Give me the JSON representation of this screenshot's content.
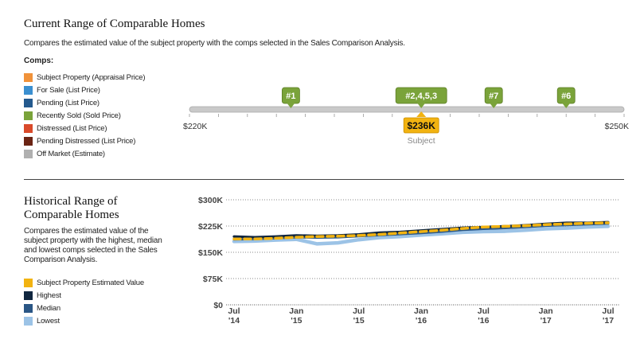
{
  "range_section": {
    "title": "Current Range of Comparable Homes",
    "description": "Compares the estimated value of the subject property with the comps selected in the Sales Comparison Analysis.",
    "comps_label": "Comps:",
    "legend": [
      {
        "label": "Subject Property (Appraisal Price)",
        "color": "#f0923a"
      },
      {
        "label": "For Sale (List Price)",
        "color": "#3a8fd0"
      },
      {
        "label": "Pending (List Price)",
        "color": "#245a8e"
      },
      {
        "label": "Recently Sold (Sold Price)",
        "color": "#7aa33a"
      },
      {
        "label": "Distressed (List Price)",
        "color": "#d94a2a"
      },
      {
        "label": "Pending Distressed (List Price)",
        "color": "#6b2414"
      },
      {
        "label": "Off Market (Estimate)",
        "color": "#b0b0b0"
      }
    ]
  },
  "history_section": {
    "title_line1": "Historical Range of",
    "title_line2": "Comparable Homes",
    "desc_lines": [
      "Compares the estimated value of the",
      "subject property with the highest, median",
      "and lowest comps selected in the Sales",
      "Comparison Analysis."
    ],
    "legend": [
      {
        "label": "Subject Property Estimated Value",
        "color": "#f2b311"
      },
      {
        "label": "Highest",
        "color": "#10263f"
      },
      {
        "label": "Median",
        "color": "#2a5685"
      },
      {
        "label": "Lowest",
        "color": "#9cc3e6"
      }
    ]
  },
  "chart_data": [
    {
      "type": "range",
      "xlim": [
        220,
        250
      ],
      "xunit": "$K",
      "end_labels": [
        "$220K",
        "$250K"
      ],
      "minor_tick_step": 2,
      "subject": {
        "value": 236,
        "label": "$236K",
        "caption": "Subject",
        "color": "#f2b311"
      },
      "markers": [
        {
          "label": "#1",
          "value": 227,
          "color": "#7aa33a"
        },
        {
          "label": "#2,4,5,3",
          "value": 236,
          "color": "#7aa33a"
        },
        {
          "label": "#7",
          "value": 241,
          "color": "#7aa33a"
        },
        {
          "label": "#6",
          "value": 246,
          "color": "#7aa33a"
        }
      ]
    },
    {
      "type": "line",
      "ylim": [
        0,
        300
      ],
      "yticks": [
        0,
        75,
        150,
        225,
        300
      ],
      "ytick_labels": [
        "$0",
        "$75K",
        "$150K",
        "$225K",
        "$300K"
      ],
      "xlim": [
        "2014-07",
        "2017-07"
      ],
      "xticks": [
        "2014-07",
        "2015-01",
        "2015-07",
        "2016-01",
        "2016-07",
        "2017-01",
        "2017-07"
      ],
      "xtick_labels": [
        [
          "Jul",
          "'14"
        ],
        [
          "Jan",
          "'15"
        ],
        [
          "Jul",
          "'15"
        ],
        [
          "Jan",
          "'16"
        ],
        [
          "Jul",
          "'16"
        ],
        [
          "Jan",
          "'17"
        ],
        [
          "Jul",
          "'17"
        ]
      ],
      "x": [
        "2014-07",
        "2014-09",
        "2014-11",
        "2015-01",
        "2015-03",
        "2015-05",
        "2015-07",
        "2015-09",
        "2015-11",
        "2016-01",
        "2016-03",
        "2016-05",
        "2016-07",
        "2016-09",
        "2016-11",
        "2017-01",
        "2017-03",
        "2017-05",
        "2017-07"
      ],
      "series": [
        {
          "name": "Subject Property Estimated Value",
          "color": "#f2b311",
          "values": [
            188,
            188,
            190,
            193,
            195,
            196,
            198,
            201,
            205,
            209,
            213,
            218,
            222,
            224,
            226,
            229,
            231,
            233,
            234
          ]
        },
        {
          "name": "Highest",
          "color": "#10263f",
          "values": [
            195,
            193,
            195,
            198,
            197,
            198,
            201,
            206,
            208,
            212,
            216,
            220,
            222,
            224,
            227,
            231,
            234,
            234,
            236
          ]
        },
        {
          "name": "Median",
          "color": "#2a5685",
          "values": [
            187,
            188,
            190,
            193,
            192,
            193,
            196,
            199,
            202,
            205,
            209,
            214,
            217,
            219,
            222,
            226,
            228,
            230,
            232
          ]
        },
        {
          "name": "Lowest",
          "color": "#9cc3e6",
          "values": [
            181,
            182,
            185,
            187,
            174,
            177,
            186,
            192,
            195,
            199,
            203,
            207,
            209,
            210,
            213,
            217,
            219,
            222,
            224
          ]
        }
      ]
    }
  ]
}
